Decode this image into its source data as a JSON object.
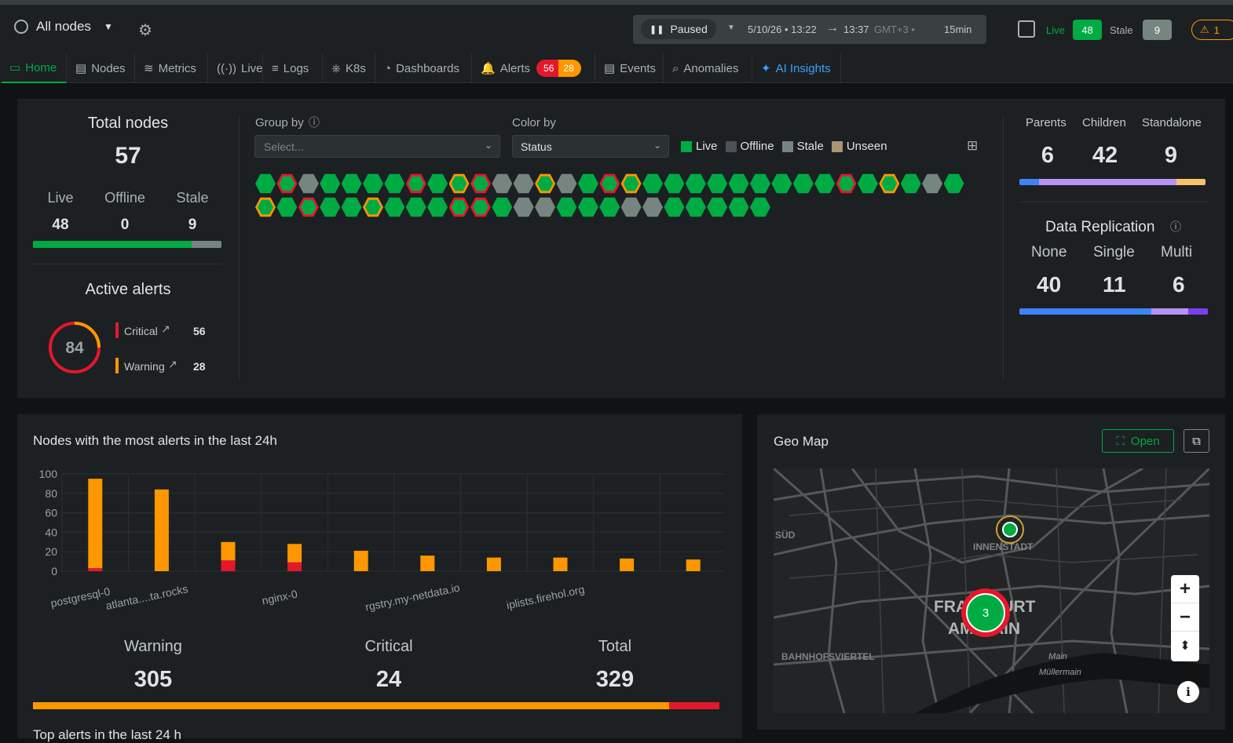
{
  "header": {
    "space_label": "All nodes",
    "paused_label": "Paused",
    "time_range": "5/10/26 • 13:22",
    "time_end": "13:37",
    "timezone": "GMT+3 •",
    "duration": "15min",
    "live_label": "Live",
    "live_count": "48",
    "stale_label": "Stale",
    "stale_count": "9",
    "warning_count": "1"
  },
  "tabs": [
    {
      "label": "Home"
    },
    {
      "label": "Nodes"
    },
    {
      "label": "Metrics"
    },
    {
      "label": "Live"
    },
    {
      "label": "Logs"
    },
    {
      "label": "K8s"
    },
    {
      "label": "Dashboards"
    },
    {
      "label": "Alerts",
      "critical": "56",
      "warning": "28"
    },
    {
      "label": "Events"
    },
    {
      "label": "Anomalies"
    },
    {
      "label": "AI Insights"
    }
  ],
  "summary": {
    "total_title": "Total nodes",
    "total": "57",
    "live_label": "Live",
    "live": "48",
    "offline_label": "Offline",
    "offline": "0",
    "stale_label": "Stale",
    "stale": "9",
    "live_fraction": 0.84,
    "alerts_title": "Active alerts",
    "alerts_total": "84",
    "critical_label": "Critical",
    "critical": "56",
    "warning_label": "Warning",
    "warning": "28",
    "group_by_label": "Group by",
    "group_by_placeholder": "Select...",
    "color_by_label": "Color by",
    "color_by_value": "Status",
    "legend": [
      {
        "label": "Live",
        "color": "#00ab44"
      },
      {
        "label": "Offline",
        "color": "#4c5356"
      },
      {
        "label": "Stale",
        "color": "#768580"
      },
      {
        "label": "Unseen",
        "color": "#a89576"
      }
    ],
    "hex_row1": [
      "g",
      "gr",
      "s",
      "g",
      "g",
      "g",
      "g",
      "gr",
      "g",
      "gy",
      "gr",
      "s",
      "s",
      "gy",
      "s",
      "g",
      "gr",
      "gy",
      "g",
      "g",
      "g",
      "g",
      "g",
      "g",
      "g",
      "g",
      "g",
      "gr",
      "g",
      "gy",
      "g",
      "s",
      "g"
    ],
    "hex_row2": [
      "gy",
      "g",
      "gr",
      "g",
      "g",
      "gy",
      "g",
      "g",
      "g",
      "gr",
      "gr",
      "g",
      "s",
      "s",
      "g",
      "g",
      "g",
      "s",
      "s",
      "g",
      "g",
      "g",
      "g",
      "g"
    ],
    "parents_label": "Parents",
    "parents": "6",
    "children_label": "Children",
    "children": "42",
    "standalone_label": "Standalone",
    "standalone": "9",
    "replication_title": "Data Replication",
    "none_label": "None",
    "none": "40",
    "single_label": "Single",
    "single": "11",
    "multi_label": "Multi",
    "multi": "6"
  },
  "alerts_chart_title": "Nodes with the most alerts in the last 24h",
  "chart_data": {
    "type": "bar",
    "categories": [
      "postgresql-0",
      "atlanta....ta.rocks",
      "",
      "nginx-0",
      "",
      "rgstry.my-netdata.io",
      "",
      "iplists.firehol.org",
      "",
      ""
    ],
    "series": [
      {
        "name": "Critical",
        "values": [
          3,
          0,
          11,
          9,
          0,
          0,
          0,
          0,
          0,
          0
        ],
        "color": "#e5172b"
      },
      {
        "name": "Warning",
        "values": [
          92,
          84,
          19,
          19,
          21,
          16,
          14,
          14,
          13,
          12
        ],
        "color": "#ff9700"
      }
    ],
    "ylim": [
      0,
      100
    ],
    "yticks": [
      "100",
      "80",
      "60",
      "40",
      "20",
      "0"
    ]
  },
  "totals": {
    "warning_label": "Warning",
    "warning": "305",
    "critical_label": "Critical",
    "critical": "24",
    "total_label": "Total",
    "total": "329",
    "warning_fraction": 0.927
  },
  "top_alerts_title": "Top alerts in the last 24 h",
  "geo": {
    "title": "Geo Map",
    "open_label": "Open",
    "cluster_count": "3",
    "city_label_1": "FRANKFURT",
    "city_label_2": "AM MAIN",
    "district_innenstadt": "INNENSTADT",
    "district_sud": "SÜD",
    "district_bahnhof": "BAHNHOFSVIERTEL",
    "river_1": "Main",
    "river_2": "Müllermain"
  }
}
